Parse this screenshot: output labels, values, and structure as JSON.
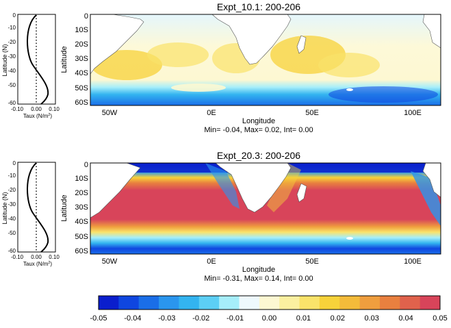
{
  "panels": [
    {
      "title": "Expt_10.1: 200-206",
      "stats": "Min= -0.04, Max= 0.02, Int= 0.00",
      "xlabel": "Longitude",
      "ylabel": "Latitude",
      "lon_ticks": [
        "50W",
        "0E",
        "50E",
        "100E"
      ],
      "lat_ticks": [
        "0",
        "10S",
        "20S",
        "30S",
        "40S",
        "50S",
        "60S"
      ]
    },
    {
      "title": "Expt_20.3: 200-206",
      "stats": "Min= -0.31, Max= 0.14, Int= 0.00",
      "xlabel": "Longitude",
      "ylabel": "Latitude",
      "lon_ticks": [
        "50W",
        "0E",
        "50E",
        "100E"
      ],
      "lat_ticks": [
        "0",
        "10S",
        "20S",
        "30S",
        "40S",
        "50S",
        "60S"
      ]
    }
  ],
  "profiles": [
    {
      "ylabel": "Latitude (N)",
      "xlabel_base": "Taux (N/m",
      "xlabel_sup": "2",
      "xlabel_end": ")",
      "y_ticks": [
        "0",
        "-10",
        "-20",
        "-30",
        "-40",
        "-50",
        "-60"
      ],
      "x_ticks": [
        "-0.10",
        "0.00",
        "0.10"
      ]
    },
    {
      "ylabel": "Latitude (N)",
      "xlabel_base": "Taux (N/m",
      "xlabel_sup": "2",
      "xlabel_end": ")",
      "y_ticks": [
        "0",
        "-10",
        "-20",
        "-30",
        "-40",
        "-50",
        "-60"
      ],
      "x_ticks": [
        "-0.10",
        "0.00",
        "0.10"
      ]
    }
  ],
  "colorbar": {
    "labels": [
      "-0.05",
      "-0.04",
      "-0.03",
      "-0.02",
      "-0.01",
      "0.00",
      "0.01",
      "0.02",
      "0.03",
      "0.04",
      "0.05"
    ],
    "colors": [
      "#0a1ecd",
      "#0f46e0",
      "#1a6ee8",
      "#2a96ee",
      "#33b4f0",
      "#5ccff5",
      "#a6eefa",
      "#eef9fd",
      "#fdf8d2",
      "#fbf0a0",
      "#fae36a",
      "#f7d23a",
      "#f4bb3a",
      "#ef9e3e",
      "#e9803f",
      "#e0624c",
      "#d8445a"
    ]
  }
}
